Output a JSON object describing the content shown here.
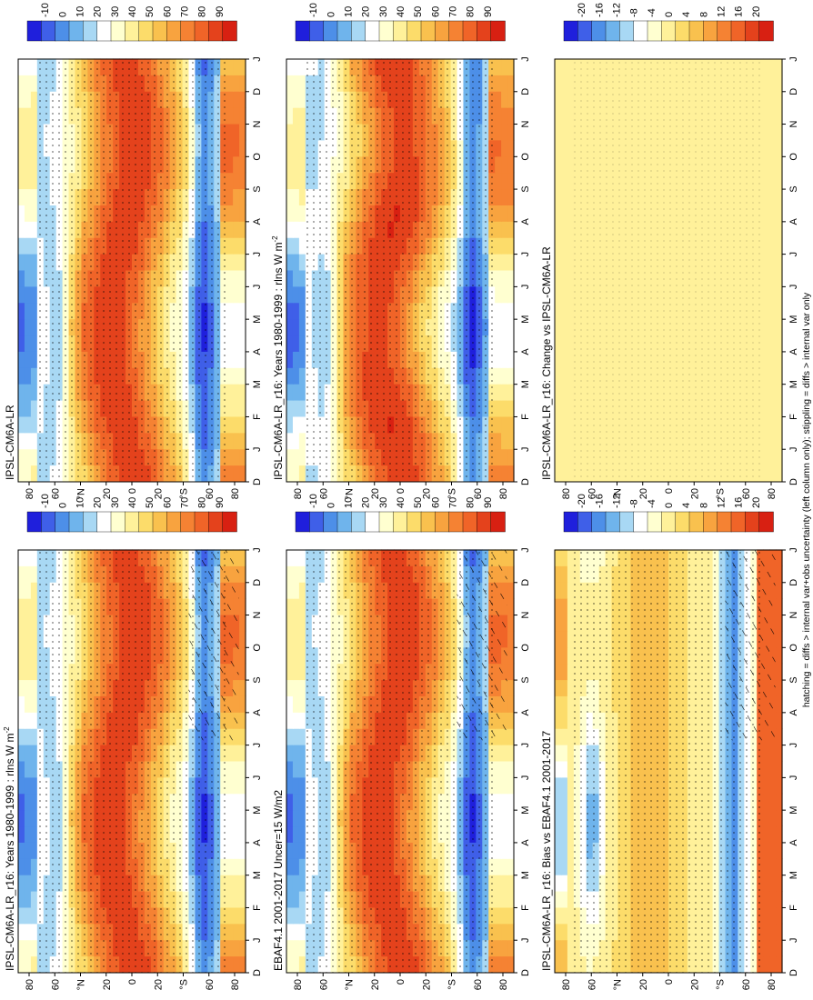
{
  "footer": "hatching = diffs > internal var+obs uncertainty (left column only); stippling = diffs > internal var only",
  "colors": {
    "abs_scale": [
      "#1f1fdc",
      "#3f5fe8",
      "#4d8fe8",
      "#6fb4ec",
      "#a8d8f4",
      "#ffffff",
      "#ffffd0",
      "#fff19a",
      "#fcdc6a",
      "#f9c14e",
      "#f8a33f",
      "#f58233",
      "#f06428",
      "#e4421c",
      "#d82012"
    ],
    "diff_scale": [
      "#1f1fdc",
      "#3f5fe8",
      "#4d8fe8",
      "#6fb4ec",
      "#a8d8f4",
      "#ffffff",
      "#ffffd0",
      "#fff19a",
      "#fcdc6a",
      "#f9c14e",
      "#f8a33f",
      "#f58233",
      "#f06428",
      "#e4421c",
      "#d82012"
    ]
  },
  "chart_data": [
    {
      "type": "heatmap",
      "title": "IPSL-CM6A-LR_r16: Years 1980-1999 : rlns W m",
      "title_sup": "-2",
      "x_ticks": [
        "D",
        "J",
        "F",
        "M",
        "A",
        "M",
        "J",
        "J",
        "A",
        "S",
        "O",
        "N",
        "D",
        "J"
      ],
      "y_ticks": [
        "80",
        "60",
        "°N",
        "20",
        "0",
        "20",
        "°S",
        "60",
        "80"
      ],
      "colorbar": [
        "90",
        "80",
        "70",
        "60",
        "50",
        "40",
        "30",
        "20",
        "10",
        "0",
        "-10"
      ],
      "range": [
        -15,
        95
      ],
      "hatching": true,
      "stippling": true
    },
    {
      "type": "heatmap",
      "title": "IPSL-CM6A-LR_r16: Years 1980-1999 : rlns W m",
      "title_sup": "-2",
      "x_ticks": [
        "D",
        "J",
        "F",
        "M",
        "A",
        "M",
        "J",
        "J",
        "A",
        "S",
        "O",
        "N",
        "D",
        "J"
      ],
      "y_ticks": [
        "80",
        "60",
        "°N",
        "20",
        "0",
        "20",
        "°S",
        "60",
        "80"
      ],
      "colorbar": [
        "90",
        "80",
        "70",
        "60",
        "50",
        "40",
        "30",
        "20",
        "10",
        "0",
        "-10"
      ],
      "range": [
        -15,
        95
      ],
      "hatching": false,
      "stippling": true
    },
    {
      "type": "heatmap",
      "title": "EBAF4.1 2001-2017 Uncer=15 W/m2",
      "title_sup": "",
      "x_ticks": [
        "D",
        "J",
        "F",
        "M",
        "A",
        "M",
        "J",
        "J",
        "A",
        "S",
        "O",
        "N",
        "D",
        "J"
      ],
      "y_ticks": [
        "80",
        "60",
        "°N",
        "20",
        "0",
        "20",
        "°S",
        "60",
        "80"
      ],
      "colorbar": [
        "90",
        "80",
        "70",
        "60",
        "50",
        "40",
        "30",
        "20",
        "10",
        "0",
        "-10"
      ],
      "range": [
        -15,
        95
      ],
      "hatching": true,
      "stippling": true
    },
    {
      "type": "heatmap",
      "title": "IPSL-CM6A-LR",
      "title_sup": "",
      "x_ticks": [
        "D",
        "J",
        "F",
        "M",
        "A",
        "M",
        "J",
        "J",
        "A",
        "S",
        "O",
        "N",
        "D",
        "J"
      ],
      "y_ticks": [
        "80",
        "60",
        "°N",
        "20",
        "0",
        "20",
        "°S",
        "60",
        "80"
      ],
      "colorbar": [
        "90",
        "80",
        "70",
        "60",
        "50",
        "40",
        "30",
        "20",
        "10",
        "0",
        "-10"
      ],
      "range": [
        -15,
        95
      ],
      "hatching": false,
      "stippling": true
    },
    {
      "type": "heatmap",
      "title": "IPSL-CM6A-LR_r16: Bias vs EBAF4.1 2001-2017",
      "title_sup": "",
      "x_ticks": [
        "D",
        "J",
        "F",
        "M",
        "A",
        "M",
        "J",
        "J",
        "A",
        "S",
        "O",
        "N",
        "D",
        "J"
      ],
      "y_ticks": [
        "80",
        "60",
        "°N",
        "20",
        "0",
        "20",
        "°S",
        "60",
        "80"
      ],
      "colorbar": [
        "20",
        "16",
        "12",
        "8",
        "4",
        "0",
        "-4",
        "-8",
        "-12",
        "-16",
        "-20"
      ],
      "range": [
        -22,
        22
      ],
      "hatching": true,
      "stippling": true
    },
    {
      "type": "heatmap",
      "title": "IPSL-CM6A-LR_r16: Change vs IPSL-CM6A-LR",
      "title_sup": "",
      "x_ticks": [
        "D",
        "J",
        "F",
        "M",
        "A",
        "M",
        "J",
        "J",
        "A",
        "S",
        "O",
        "N",
        "D",
        "J"
      ],
      "y_ticks": [
        "80",
        "60",
        "°N",
        "20",
        "0",
        "20",
        "°S",
        "60",
        "80"
      ],
      "colorbar": [
        "20",
        "16",
        "12",
        "8",
        "4",
        "0",
        "-4",
        "-8",
        "-12",
        "-16",
        "-20"
      ],
      "range": [
        -22,
        22
      ],
      "hatching": false,
      "stippling": true
    }
  ]
}
